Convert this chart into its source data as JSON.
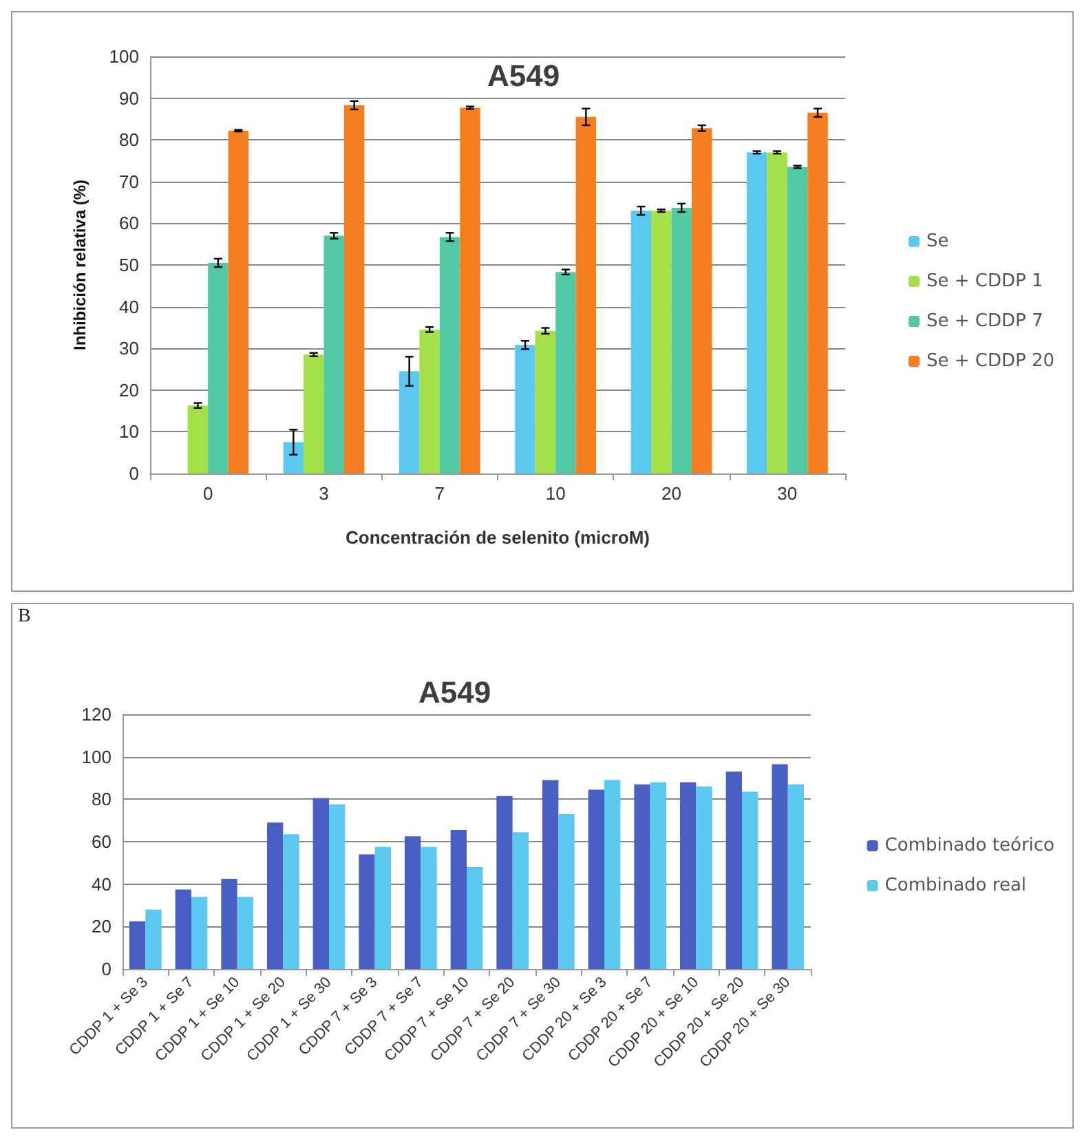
{
  "chart_data": [
    {
      "type": "bar",
      "title": "A549",
      "xlabel": "Concentración de selenito (microM)",
      "ylabel": "Inhibición relativa (%)",
      "categories": [
        "0",
        "3",
        "7",
        "10",
        "20",
        "30"
      ],
      "series": [
        {
          "name": "Se",
          "color": "#5bc8f0",
          "values": [
            null,
            7.5,
            24.5,
            30.8,
            63,
            77
          ],
          "errors": [
            null,
            3,
            3.5,
            1,
            1,
            0.3
          ]
        },
        {
          "name": "Se + CDDP 1",
          "color": "#a4e04a",
          "values": [
            16.3,
            28.5,
            34.5,
            34.2,
            63,
            77
          ],
          "errors": [
            0.6,
            0.4,
            0.6,
            0.7,
            0.3,
            0.3
          ]
        },
        {
          "name": "Se + CDDP 7",
          "color": "#52c9a6",
          "values": [
            50.5,
            57,
            56.7,
            48.3,
            63.7,
            73.5
          ],
          "errors": [
            1,
            0.7,
            1,
            0.6,
            1,
            0.3
          ]
        },
        {
          "name": "Se + CDDP 20",
          "color": "#f57f20",
          "values": [
            82.2,
            88.3,
            87.7,
            85.5,
            82.8,
            86.5
          ],
          "errors": [
            0.2,
            1,
            0.3,
            2,
            0.7,
            1
          ]
        }
      ],
      "ylim": [
        0,
        100
      ],
      "yticks": [
        0,
        10,
        20,
        30,
        40,
        50,
        60,
        70,
        80,
        90,
        100
      ],
      "grid": "y",
      "legend": "right"
    },
    {
      "type": "bar",
      "title": "A549",
      "annotations": [
        "B"
      ],
      "categories": [
        "CDDP 1 + Se 3",
        "CDDP 1 + Se 7",
        "CDDP 1 + Se 10",
        "CDDP 1 + Se 20",
        "CDDP 1 + Se 30",
        "CDDP 7 + Se 3",
        "CDDP 7 + Se 7",
        "CDDP 7 + Se 10",
        "CDDP 7 + Se 20",
        "CDDP 7 + Se 30",
        "CDDP 20 + Se 3",
        "CDDP 20 + Se 7",
        "CDDP 20 + Se 10",
        "CDDP 20 + Se 20",
        "CDDP 20 + Se 30"
      ],
      "series": [
        {
          "name": "Combinado teórico",
          "color": "#4a5fc4",
          "values": [
            22.5,
            37.5,
            42.5,
            69,
            80.5,
            54,
            62.5,
            65.5,
            81.5,
            89,
            84.5,
            87,
            88,
            93,
            96.5
          ]
        },
        {
          "name": "Combinado real",
          "color": "#5bc8f0",
          "values": [
            28,
            34,
            34,
            63.5,
            77.5,
            57.5,
            57.5,
            48,
            64.5,
            73,
            89,
            88,
            86,
            83.5,
            87
          ]
        }
      ],
      "ylim": [
        0,
        120
      ],
      "yticks": [
        0,
        20,
        40,
        60,
        80,
        100,
        120
      ],
      "grid": "y",
      "legend": "right"
    }
  ]
}
